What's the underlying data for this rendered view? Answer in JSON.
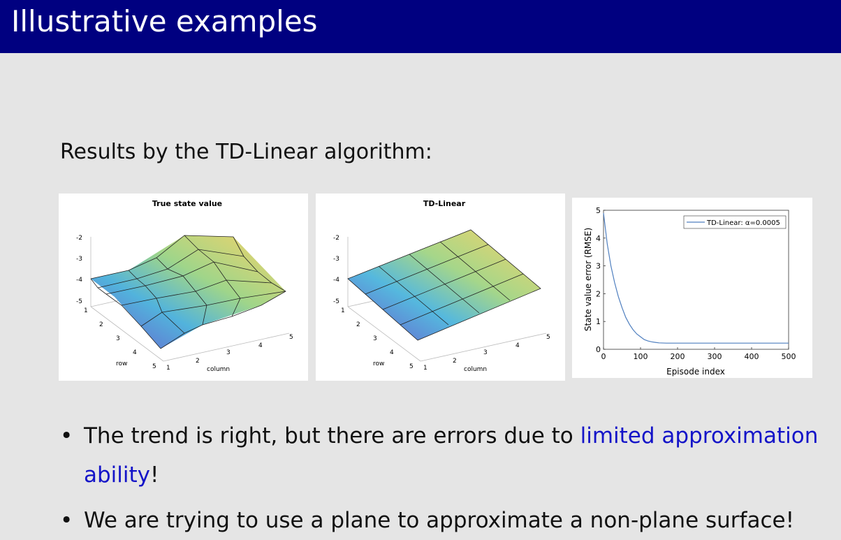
{
  "slide": {
    "title": "Illustrative examples",
    "subtitle": "Results by the TD-Linear algorithm:",
    "bullets": [
      {
        "before": "The trend is right, but there are errors due to ",
        "highlight": "limited approximation",
        "line2_highlight": "ability",
        "line2_after": "!"
      },
      {
        "text": "We are trying to use a plane to approximate a non-plane surface!"
      }
    ],
    "bullet_symbol": "•"
  },
  "plot_true": {
    "title": "True state value",
    "zticks": [
      "-2",
      "-3",
      "-4",
      "-5"
    ],
    "row_ticks": [
      "1",
      "2",
      "3",
      "4",
      "5"
    ],
    "col_ticks": [
      "1",
      "2",
      "3",
      "4",
      "5"
    ],
    "row_label": "row",
    "col_label": "column"
  },
  "plot_td": {
    "title": "TD-Linear",
    "zticks": [
      "-2",
      "-3",
      "-4",
      "-5"
    ],
    "row_ticks": [
      "1",
      "2",
      "3",
      "4",
      "5"
    ],
    "col_ticks": [
      "1",
      "2",
      "3",
      "4",
      "5"
    ],
    "row_label": "row",
    "col_label": "column"
  },
  "chart_data": {
    "type": "line",
    "xlabel": "Episode index",
    "ylabel": "State value error (RMSE)",
    "xlim": [
      0,
      500
    ],
    "ylim": [
      0,
      5
    ],
    "xticks": [
      "0",
      "100",
      "200",
      "300",
      "400",
      "500"
    ],
    "yticks": [
      "0",
      "1",
      "2",
      "3",
      "4",
      "5"
    ],
    "legend_position": "top-right",
    "series": [
      {
        "name": "TD-Linear: α=0.0005",
        "color": "#4f7fbf",
        "x": [
          0,
          10,
          20,
          30,
          40,
          50,
          60,
          70,
          80,
          90,
          100,
          110,
          120,
          130,
          140,
          150,
          170,
          200,
          250,
          300,
          350,
          400,
          450,
          500
        ],
        "y": [
          4.9,
          3.8,
          3.0,
          2.4,
          1.9,
          1.5,
          1.15,
          0.9,
          0.7,
          0.55,
          0.45,
          0.35,
          0.3,
          0.27,
          0.25,
          0.23,
          0.22,
          0.22,
          0.22,
          0.22,
          0.22,
          0.22,
          0.22,
          0.22
        ]
      }
    ]
  },
  "colors": {
    "title_bar": "#000080",
    "highlight": "#1414c8",
    "line": "#4f7fbf"
  }
}
